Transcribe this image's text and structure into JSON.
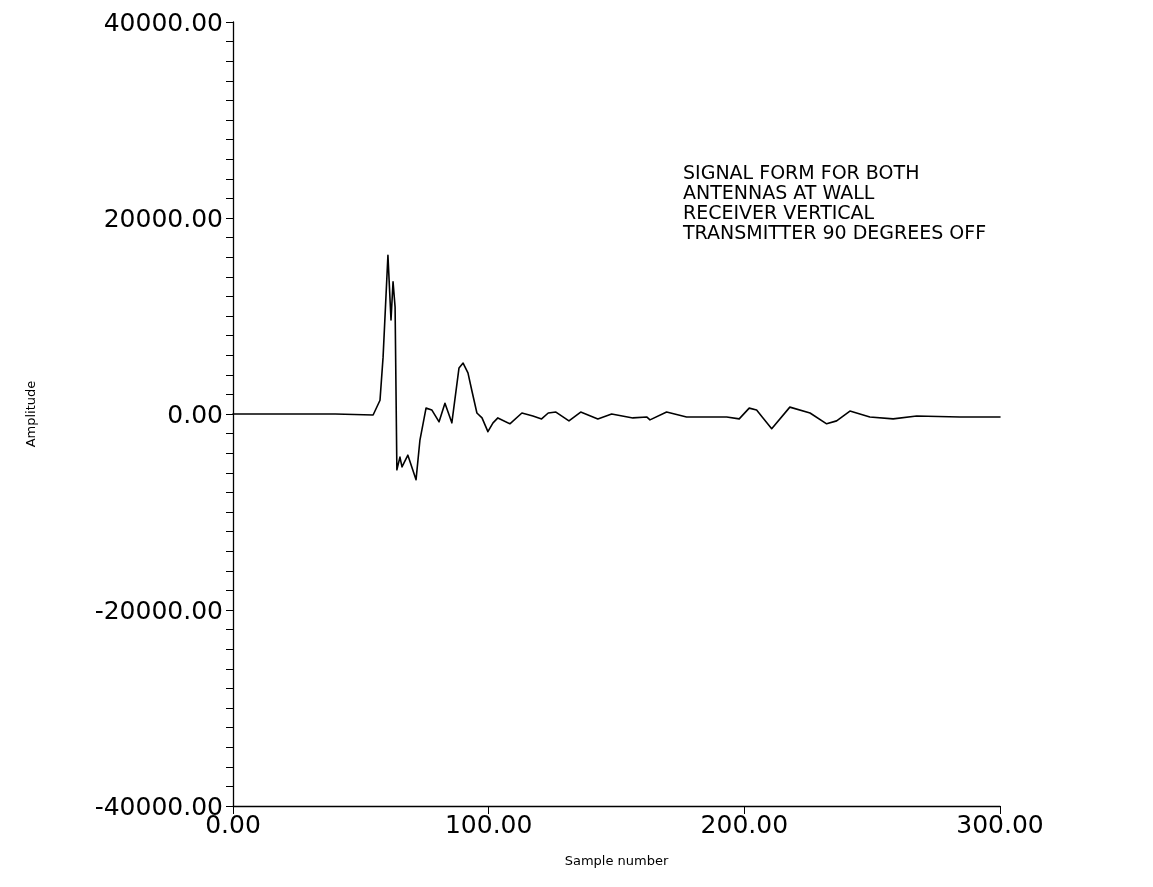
{
  "chart_data": {
    "type": "line",
    "xlabel": "Sample number",
    "ylabel": "Amplitude",
    "annotations": [
      "SIGNAL FORM FOR BOTH",
      "ANTENNAS AT WALL",
      "RECEIVER VERTICAL",
      "TRANSMITTER 90 DEGREES OFF"
    ],
    "xlim": [
      0,
      300
    ],
    "ylim": [
      -40000,
      40000
    ],
    "xticks": [
      {
        "value": 0,
        "label": "0.00"
      },
      {
        "value": 100,
        "label": "100.00"
      },
      {
        "value": 200,
        "label": "200.00"
      },
      {
        "value": 300,
        "label": "300.00"
      }
    ],
    "yticks": [
      {
        "value": -40000,
        "label": "-40000.00"
      },
      {
        "value": -38000,
        "label": null
      },
      {
        "value": -36000,
        "label": null
      },
      {
        "value": -34000,
        "label": null
      },
      {
        "value": -32000,
        "label": null
      },
      {
        "value": -30000,
        "label": null
      },
      {
        "value": -28000,
        "label": null
      },
      {
        "value": -26000,
        "label": null
      },
      {
        "value": -24000,
        "label": null
      },
      {
        "value": -22000,
        "label": null
      },
      {
        "value": -20000,
        "label": "-20000.00"
      },
      {
        "value": -18000,
        "label": null
      },
      {
        "value": -16000,
        "label": null
      },
      {
        "value": -14000,
        "label": null
      },
      {
        "value": -12000,
        "label": null
      },
      {
        "value": -10000,
        "label": null
      },
      {
        "value": -8000,
        "label": null
      },
      {
        "value": -6000,
        "label": null
      },
      {
        "value": -4000,
        "label": null
      },
      {
        "value": -2000,
        "label": null
      },
      {
        "value": 0,
        "label": "0.00"
      },
      {
        "value": 2000,
        "label": null
      },
      {
        "value": 4000,
        "label": null
      },
      {
        "value": 6000,
        "label": null
      },
      {
        "value": 8000,
        "label": null
      },
      {
        "value": 10000,
        "label": null
      },
      {
        "value": 12000,
        "label": null
      },
      {
        "value": 14000,
        "label": null
      },
      {
        "value": 16000,
        "label": null
      },
      {
        "value": 18000,
        "label": null
      },
      {
        "value": 20000,
        "label": "20000.00"
      },
      {
        "value": 22000,
        "label": null
      },
      {
        "value": 24000,
        "label": null
      },
      {
        "value": 26000,
        "label": null
      },
      {
        "value": 28000,
        "label": null
      },
      {
        "value": 30000,
        "label": null
      },
      {
        "value": 32000,
        "label": null
      },
      {
        "value": 34000,
        "label": null
      },
      {
        "value": 36000,
        "label": null
      },
      {
        "value": 38000,
        "label": null
      },
      {
        "value": 40000,
        "label": "40000.00"
      }
    ],
    "grid": false,
    "marker": "none",
    "line_style": "solid",
    "series": [
      {
        "color": "#000000",
        "x": [
          0,
          20,
          40,
          54.8,
          57.5,
          58.7,
          60.6,
          61.8,
          62.6,
          63.4,
          64.1,
          65.3,
          66.1,
          68.4,
          71.6,
          73.1,
          75.5,
          77.8,
          80.6,
          82.9,
          85.6,
          88.4,
          90,
          91.9,
          93.5,
          95.4,
          97.4,
          99.7,
          101.7,
          103.6,
          108.3,
          113,
          117.3,
          120.7,
          123.3,
          126.3,
          131.4,
          136,
          142.7,
          148.1,
          156.4,
          161.8,
          163.1,
          169.6,
          177.4,
          193.1,
          198,
          201.9,
          204.8,
          210.7,
          217.8,
          225.7,
          232.2,
          236.1,
          241.3,
          249.1,
          258.2,
          267.4,
          284.3,
          300
        ],
        "values": [
          0,
          0,
          0,
          -100,
          1400,
          5800,
          16200,
          9600,
          13500,
          10900,
          -5700,
          -4400,
          -5400,
          -4200,
          -6700,
          -2700,
          600,
          400,
          -800,
          1100,
          -900,
          4700,
          5200,
          4200,
          2300,
          100,
          -400,
          -1800,
          -900,
          -400,
          -1000,
          100,
          -200,
          -500,
          100,
          200,
          -700,
          200,
          -500,
          0,
          -400,
          -300,
          -600,
          200,
          -300,
          -300,
          -500,
          600,
          400,
          -1500,
          700,
          100,
          -1000,
          -700,
          300,
          -300,
          -500,
          -200,
          -300,
          -300
        ]
      }
    ]
  }
}
